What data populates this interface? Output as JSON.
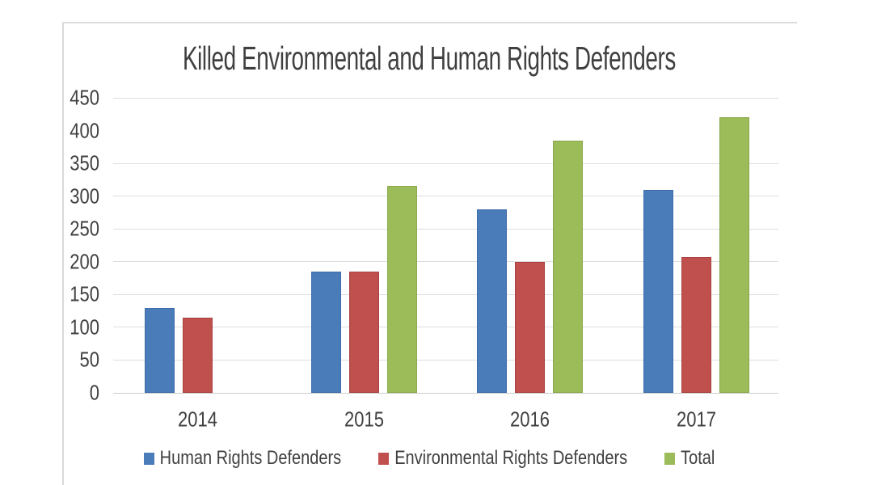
{
  "chart_data": {
    "type": "bar",
    "title": "Killed Environmental and Human Rights Defenders",
    "categories": [
      "2014",
      "2015",
      "2016",
      "2017"
    ],
    "series": [
      {
        "name": "Human Rights Defenders",
        "color": "#4a7cba",
        "border_color": "#3d6da8",
        "values": [
          130,
          185,
          280,
          310
        ]
      },
      {
        "name": "Environmental Rights Defenders",
        "color": "#c0504d",
        "border_color": "#a8423f",
        "values": [
          115,
          185,
          200,
          207
        ]
      },
      {
        "name": "Total",
        "color": "#9cbb59",
        "border_color": "#8aa94c",
        "values": [
          null,
          315,
          385,
          420
        ]
      }
    ],
    "ylabel": "",
    "xlabel": "",
    "ylim": [
      0,
      450
    ],
    "y_ticks": [
      450,
      400,
      350,
      300,
      250,
      200,
      150,
      100,
      50,
      0
    ],
    "missing_gridlines": [
      400
    ],
    "grid": true,
    "gridline_color": "#dedede",
    "axis_line_color": "#cccccc",
    "text_color": "#404040",
    "legend_position": "bottom"
  }
}
